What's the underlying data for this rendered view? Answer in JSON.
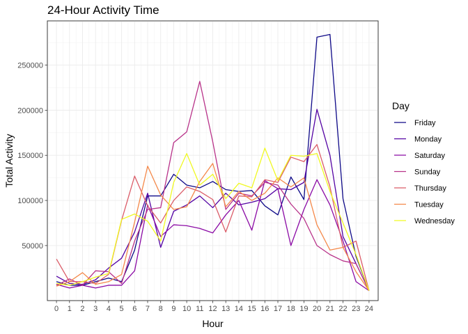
{
  "chart_data": {
    "type": "line",
    "title": "24-Hour Activity Time",
    "xlabel": "Hour",
    "ylabel": "Total Activity",
    "x": [
      0,
      1,
      2,
      3,
      4,
      5,
      6,
      7,
      8,
      9,
      10,
      11,
      12,
      13,
      14,
      15,
      16,
      17,
      18,
      19,
      20,
      21,
      22,
      23,
      24
    ],
    "x_ticks": [
      0,
      1,
      2,
      3,
      4,
      5,
      6,
      7,
      8,
      9,
      10,
      11,
      12,
      13,
      14,
      15,
      16,
      17,
      18,
      19,
      20,
      21,
      22,
      23,
      24
    ],
    "y_ticks": [
      50000,
      100000,
      150000,
      200000,
      250000
    ],
    "y_tick_labels": [
      "50000",
      "100000",
      "150000",
      "200000",
      "250000"
    ],
    "xlim": [
      -0.7,
      24.7
    ],
    "ylim": [
      -11000,
      299000
    ],
    "grid": true,
    "legend_title": "Day",
    "legend_position": "right",
    "series": [
      {
        "name": "Friday",
        "color": "#0d0887",
        "values": [
          10000,
          6000,
          6000,
          10000,
          14000,
          10000,
          45000,
          105000,
          105000,
          129000,
          117000,
          114000,
          121000,
          112000,
          110000,
          111000,
          94000,
          84000,
          126000,
          101000,
          281000,
          284000,
          102000,
          38000,
          0
        ]
      },
      {
        "name": "Monday",
        "color": "#5302a3",
        "values": [
          16000,
          8000,
          7000,
          12000,
          25000,
          36000,
          65000,
          108000,
          48000,
          88000,
          95000,
          105000,
          92000,
          108000,
          95000,
          98000,
          102000,
          113000,
          112000,
          120000,
          201000,
          150000,
          60000,
          30000,
          0
        ]
      },
      {
        "name": "Saturday",
        "color": "#8b0aa5",
        "values": [
          7000,
          3000,
          6000,
          3000,
          6000,
          6000,
          22000,
          95000,
          60000,
          73000,
          72000,
          69000,
          64000,
          84000,
          100000,
          67000,
          122000,
          113000,
          50000,
          90000,
          123000,
          95000,
          55000,
          10000,
          0
        ]
      },
      {
        "name": "Sunday",
        "color": "#b83289",
        "values": [
          6000,
          13000,
          6000,
          22000,
          21000,
          8000,
          55000,
          90000,
          92000,
          164000,
          176000,
          232000,
          165000,
          90000,
          108000,
          105000,
          120000,
          117000,
          96000,
          80000,
          50000,
          40000,
          33000,
          30000,
          0
        ]
      },
      {
        "name": "Thursday",
        "color": "#db5c68",
        "values": [
          35000,
          10000,
          10000,
          8000,
          18000,
          78000,
          127000,
          94000,
          75000,
          100000,
          115000,
          110000,
          101000,
          65000,
          105000,
          104000,
          123000,
          120000,
          148000,
          143000,
          162000,
          115000,
          48000,
          55000,
          0
        ]
      },
      {
        "name": "Tuesday",
        "color": "#f48849",
        "values": [
          5000,
          10000,
          20000,
          7000,
          10000,
          18000,
          76000,
          138000,
          106000,
          90000,
          93000,
          121000,
          141000,
          93000,
          110000,
          100000,
          108000,
          125000,
          115000,
          125000,
          73000,
          45000,
          48000,
          21000,
          0
        ]
      },
      {
        "name": "Wednesday",
        "color": "#f0f921",
        "values": [
          8000,
          6000,
          10000,
          15000,
          19000,
          79000,
          85000,
          77000,
          55000,
          120000,
          152000,
          117000,
          129000,
          102000,
          119000,
          114000,
          158000,
          122000,
          150000,
          149000,
          152000,
          110000,
          75000,
          40000,
          0
        ]
      }
    ]
  }
}
